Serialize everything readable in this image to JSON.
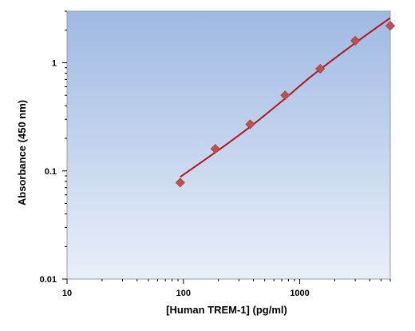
{
  "chart_data": {
    "type": "scatter",
    "xlabel": "[Human TREM-1] (pg/ml)",
    "ylabel": "Absorbance (450 nm)",
    "x_scale": "log",
    "y_scale": "log",
    "xlim": [
      10,
      6000
    ],
    "ylim": [
      0.01,
      3
    ],
    "x_ticks": [
      {
        "value": 10,
        "label": "10"
      },
      {
        "value": 100,
        "label": "100"
      },
      {
        "value": 1000,
        "label": "1000"
      }
    ],
    "y_ticks": [
      {
        "value": 0.01,
        "label": "0.01"
      },
      {
        "value": 0.1,
        "label": "0.1"
      },
      {
        "value": 1,
        "label": "1"
      }
    ],
    "grid": false,
    "legend": "none",
    "series": [
      {
        "kind": "points",
        "marker": "diamond",
        "x": [
          94,
          188,
          375,
          750,
          1500,
          3000,
          6000
        ],
        "y": [
          0.078,
          0.16,
          0.27,
          0.5,
          0.88,
          1.6,
          2.2
        ]
      },
      {
        "kind": "fit-line",
        "x": [
          94,
          150,
          250,
          400,
          700,
          1200,
          2000,
          3500,
          6000
        ],
        "y": [
          0.088,
          0.125,
          0.185,
          0.27,
          0.44,
          0.72,
          1.1,
          1.72,
          2.6
        ]
      }
    ],
    "colors": {
      "marker": "#c0504d",
      "marker_edge": "#a33f3c",
      "line": "#b0161c",
      "plot_bg_top": "#9fb9e3",
      "plot_bg_bottom": "#e9eff9",
      "axis": "#9a9a9a"
    }
  }
}
